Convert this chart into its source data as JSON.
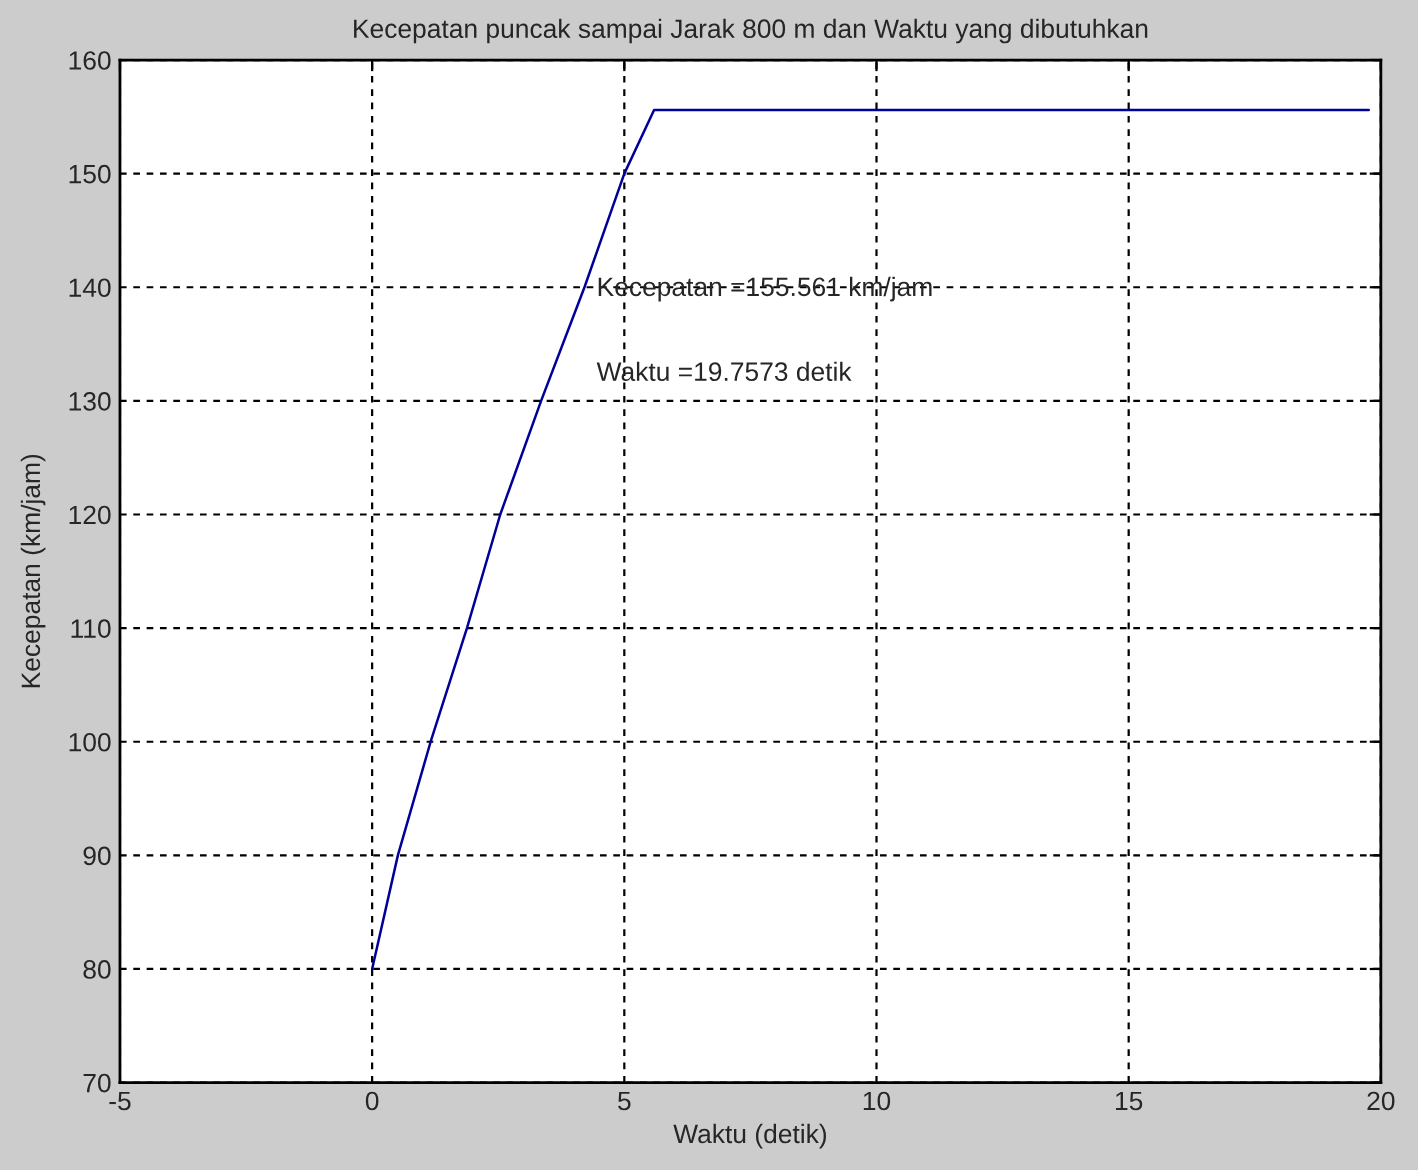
{
  "chart_data": {
    "type": "line",
    "title": "Kecepatan puncak sampai Jarak 800 m dan Waktu yang dibutuhkan",
    "xlabel": "Waktu (detik)",
    "ylabel": "Kecepatan (km/jam)",
    "annotations": [
      "Kecepatan =155.561 km/jam",
      "Waktu =19.7573 detik"
    ],
    "series": [
      {
        "color": "#000099",
        "x": [
          0,
          0.51,
          1.16,
          1.88,
          2.54,
          3.35,
          4.21,
          5.0,
          5.59,
          19.76
        ],
        "values": [
          80,
          90,
          100,
          110,
          120,
          130,
          140,
          150,
          155.6,
          155.6
        ]
      }
    ],
    "xlim": [
      -5,
      20
    ],
    "ylim": [
      70,
      160
    ],
    "xticks": [
      -5,
      0,
      5,
      10,
      15,
      20
    ],
    "yticks": [
      70,
      80,
      90,
      100,
      110,
      120,
      130,
      140,
      150,
      160
    ],
    "grid": true,
    "line_style": "solid"
  }
}
